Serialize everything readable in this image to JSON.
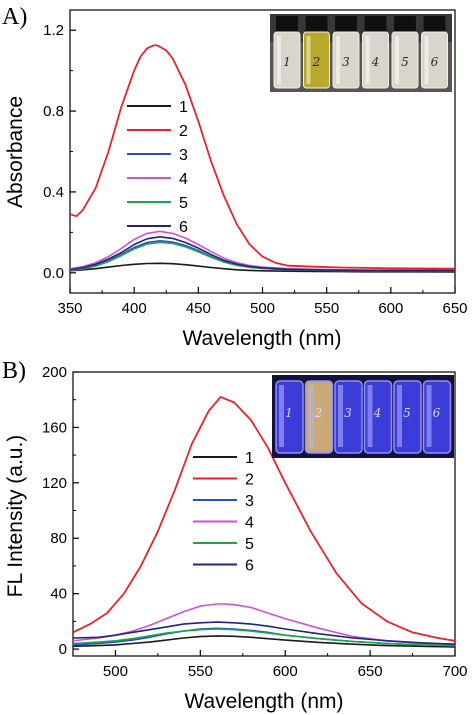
{
  "colors": {
    "s1": "#1a1a1a",
    "s2": "#e8222a",
    "s3": "#2f4ac8",
    "s4": "#d44fd4",
    "s5": "#17a84a",
    "s6": "#22237a"
  },
  "chart_data": [
    {
      "type": "line",
      "panel_label": "A)",
      "xlabel": "Wavelength (nm)",
      "ylabel": "Absorbance",
      "xlim": [
        350,
        650
      ],
      "ylim": [
        -0.1,
        1.3
      ],
      "xticks": [
        350,
        400,
        450,
        500,
        550,
        600,
        650
      ],
      "xtick_labels": [
        "350",
        "400",
        "450",
        "500",
        "550",
        "600",
        "650"
      ],
      "yticks": [
        0.0,
        0.4,
        0.8,
        1.2
      ],
      "ytick_labels": [
        "0.0",
        "0.4",
        "0.8",
        "1.2"
      ],
      "grid": false,
      "legend_position": "left",
      "inset_photo": {
        "description": "daylight photo of six vials",
        "vial_labels": [
          "1",
          "2",
          "3",
          "4",
          "5",
          "6"
        ]
      },
      "series": [
        {
          "name": "1",
          "x": [
            350,
            360,
            370,
            380,
            390,
            400,
            410,
            420,
            430,
            440,
            450,
            460,
            470,
            480,
            490,
            500,
            520,
            540,
            560,
            580,
            600,
            620,
            650
          ],
          "y": [
            0.01,
            0.015,
            0.02,
            0.028,
            0.036,
            0.042,
            0.046,
            0.047,
            0.045,
            0.04,
            0.033,
            0.026,
            0.02,
            0.015,
            0.012,
            0.01,
            0.008,
            0.007,
            0.006,
            0.005,
            0.005,
            0.005,
            0.004
          ]
        },
        {
          "name": "2",
          "x": [
            350,
            355,
            360,
            370,
            380,
            390,
            400,
            405,
            410,
            415,
            418,
            425,
            430,
            440,
            450,
            460,
            470,
            480,
            490,
            500,
            510,
            520,
            540,
            560,
            580,
            600,
            650
          ],
          "y": [
            0.29,
            0.28,
            0.31,
            0.42,
            0.6,
            0.82,
            1.0,
            1.07,
            1.11,
            1.125,
            1.125,
            1.1,
            1.06,
            0.93,
            0.75,
            0.55,
            0.38,
            0.24,
            0.14,
            0.08,
            0.05,
            0.035,
            0.03,
            0.026,
            0.024,
            0.022,
            0.02
          ]
        },
        {
          "name": "3",
          "x": [
            350,
            360,
            370,
            380,
            390,
            400,
            410,
            420,
            430,
            440,
            450,
            460,
            470,
            480,
            490,
            500,
            520,
            540,
            560,
            600,
            650
          ],
          "y": [
            0.01,
            0.02,
            0.035,
            0.06,
            0.09,
            0.125,
            0.15,
            0.158,
            0.152,
            0.135,
            0.11,
            0.08,
            0.055,
            0.038,
            0.028,
            0.022,
            0.016,
            0.014,
            0.012,
            0.011,
            0.01
          ]
        },
        {
          "name": "4",
          "x": [
            350,
            360,
            370,
            380,
            390,
            400,
            410,
            420,
            430,
            440,
            450,
            460,
            470,
            480,
            490,
            500,
            520,
            540,
            560,
            600,
            650
          ],
          "y": [
            0.02,
            0.03,
            0.05,
            0.08,
            0.12,
            0.165,
            0.195,
            0.205,
            0.195,
            0.172,
            0.14,
            0.105,
            0.072,
            0.05,
            0.036,
            0.028,
            0.02,
            0.017,
            0.015,
            0.013,
            0.012
          ]
        },
        {
          "name": "5",
          "x": [
            350,
            360,
            370,
            380,
            390,
            400,
            410,
            420,
            430,
            440,
            450,
            460,
            470,
            480,
            490,
            500,
            520,
            540,
            560,
            600,
            650
          ],
          "y": [
            0.01,
            0.02,
            0.033,
            0.056,
            0.085,
            0.118,
            0.142,
            0.15,
            0.145,
            0.128,
            0.104,
            0.077,
            0.053,
            0.037,
            0.027,
            0.021,
            0.015,
            0.013,
            0.011,
            0.01,
            0.009
          ]
        },
        {
          "name": "6",
          "x": [
            350,
            360,
            370,
            380,
            390,
            400,
            410,
            420,
            430,
            440,
            450,
            460,
            470,
            480,
            490,
            500,
            520,
            540,
            560,
            600,
            650
          ],
          "y": [
            0.015,
            0.025,
            0.042,
            0.068,
            0.1,
            0.14,
            0.168,
            0.178,
            0.17,
            0.15,
            0.122,
            0.09,
            0.062,
            0.043,
            0.031,
            0.024,
            0.017,
            0.015,
            0.013,
            0.012,
            0.011
          ]
        }
      ]
    },
    {
      "type": "line",
      "panel_label": "B)",
      "xlabel": "Wavelength (nm)",
      "ylabel": "FL Intensity (a.u.)",
      "xlim": [
        475,
        700
      ],
      "ylim": [
        -5,
        200
      ],
      "xticks": [
        500,
        550,
        600,
        650,
        700
      ],
      "xtick_labels": [
        "500",
        "550",
        "600",
        "650",
        "700"
      ],
      "yticks": [
        0,
        40,
        80,
        120,
        160,
        200
      ],
      "ytick_labels": [
        "0",
        "40",
        "80",
        "120",
        "160",
        "200"
      ],
      "grid": false,
      "legend_position": "left",
      "inset_photo": {
        "description": "UV-illuminated photo of six vials",
        "vial_labels": [
          "1",
          "2",
          "3",
          "4",
          "5",
          "6"
        ]
      },
      "series": [
        {
          "name": "1",
          "x": [
            475,
            490,
            500,
            510,
            520,
            530,
            540,
            550,
            560,
            570,
            580,
            590,
            600,
            620,
            640,
            660,
            680,
            700
          ],
          "y": [
            2,
            2.5,
            3,
            4,
            5,
            6.5,
            8,
            9,
            9.5,
            9.2,
            8.5,
            7.5,
            6.5,
            4.8,
            3.5,
            2.5,
            2,
            1.5
          ]
        },
        {
          "name": "2",
          "x": [
            475,
            485,
            495,
            505,
            515,
            525,
            535,
            545,
            555,
            562,
            570,
            580,
            590,
            600,
            615,
            630,
            645,
            660,
            675,
            690,
            700
          ],
          "y": [
            12,
            18,
            26,
            40,
            60,
            85,
            115,
            148,
            172,
            182,
            178,
            165,
            145,
            120,
            85,
            55,
            33,
            20,
            12,
            8,
            6
          ]
        },
        {
          "name": "3",
          "x": [
            475,
            490,
            500,
            510,
            520,
            530,
            540,
            550,
            560,
            570,
            580,
            590,
            600,
            620,
            640,
            660,
            680,
            700
          ],
          "y": [
            3,
            4,
            5,
            6.5,
            8.5,
            11,
            13,
            14.5,
            15,
            14.5,
            13.5,
            12,
            10,
            7.5,
            5.5,
            4,
            3,
            2.5
          ]
        },
        {
          "name": "4",
          "x": [
            475,
            490,
            500,
            510,
            520,
            530,
            540,
            550,
            560,
            565,
            570,
            580,
            590,
            600,
            620,
            640,
            660,
            680,
            700
          ],
          "y": [
            6,
            8,
            10,
            13,
            17,
            22,
            27,
            31,
            32.5,
            32.5,
            32,
            30,
            26,
            22,
            15,
            9,
            6,
            4,
            3
          ]
        },
        {
          "name": "5",
          "x": [
            475,
            490,
            500,
            510,
            520,
            530,
            540,
            550,
            560,
            570,
            580,
            590,
            600,
            620,
            640,
            660,
            680,
            700
          ],
          "y": [
            4,
            5,
            6,
            7.5,
            9.5,
            11.5,
            13,
            14,
            14.5,
            14,
            13,
            11.5,
            10,
            7.5,
            5.5,
            4,
            3,
            2.5
          ]
        },
        {
          "name": "6",
          "x": [
            475,
            490,
            500,
            510,
            520,
            530,
            540,
            550,
            560,
            570,
            580,
            590,
            600,
            620,
            640,
            660,
            680,
            700
          ],
          "y": [
            8,
            8.5,
            10,
            12,
            14,
            16,
            18,
            19,
            19.5,
            19,
            18,
            16.5,
            14.5,
            11,
            8,
            6,
            4.5,
            3.5
          ]
        }
      ]
    }
  ]
}
